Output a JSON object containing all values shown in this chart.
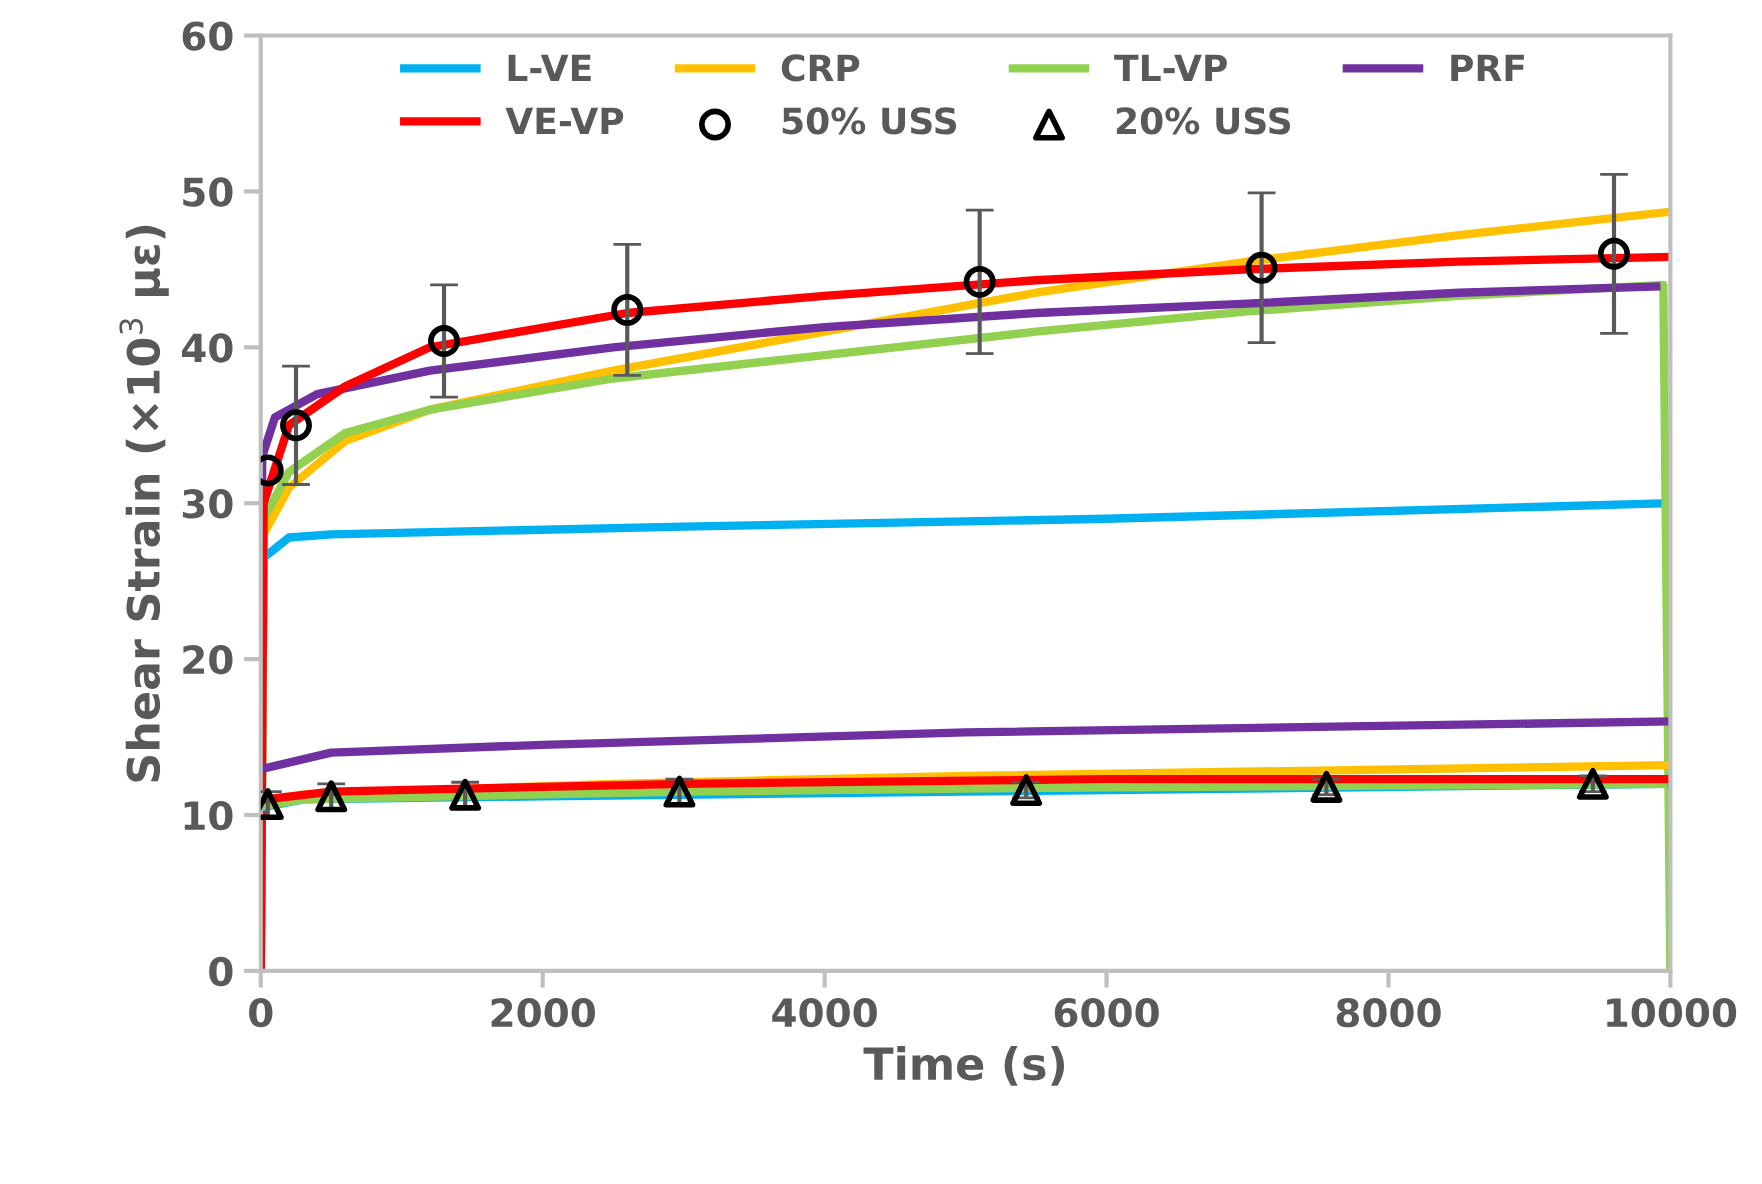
{
  "chart_data": {
    "type": "line",
    "xlabel": "Time (s)",
    "ylabel": "Shear Strain (×10$^{3}$ με)",
    "xlim": [
      0,
      10000
    ],
    "ylim": [
      0,
      60
    ],
    "xticks": [
      0,
      2000,
      4000,
      6000,
      8000,
      10000
    ],
    "yticks": [
      0,
      10,
      20,
      30,
      40,
      50,
      60
    ],
    "grid": false,
    "legend": "top",
    "marker": "none",
    "line_style": "solid",
    "series": [
      {
        "name": "L-VE",
        "color": "#00b0f0",
        "x": [
          0,
          20,
          200,
          500,
          3000,
          6000,
          10000
        ],
        "values": [
          0,
          26.5,
          27.8,
          28,
          28.5,
          29,
          30
        ]
      },
      {
        "name": "CRP",
        "color": "#ffc000",
        "x": [
          0,
          20,
          200,
          600,
          1200,
          2500,
          4000,
          5500,
          7000,
          8500,
          10000
        ],
        "values": [
          0,
          28,
          31,
          34,
          36,
          38.5,
          41,
          43.5,
          45.5,
          47.2,
          48.7
        ]
      },
      {
        "name": "TL-VP",
        "color": "#92d050",
        "x": [
          0,
          20,
          200,
          600,
          1200,
          2500,
          4000,
          5500,
          7000,
          8500,
          9950,
          10000
        ],
        "values": [
          0,
          29,
          32,
          34.5,
          36,
          38,
          39.5,
          41,
          42.3,
          43.3,
          44,
          0
        ]
      },
      {
        "name": "PRF",
        "color": "#7030a0",
        "x": [
          0,
          10,
          100,
          400,
          1200,
          2500,
          4000,
          5500,
          7000,
          8500,
          9900
        ],
        "values": [
          0,
          33,
          35.5,
          37,
          38.5,
          40,
          41.3,
          42.2,
          42.8,
          43.5,
          43.9
        ]
      },
      {
        "name": "VE-VP",
        "color": "#ff0000",
        "x": [
          0,
          20,
          200,
          600,
          1200,
          2600,
          4000,
          5500,
          7000,
          8500,
          10000
        ],
        "values": [
          0,
          30,
          35,
          37.5,
          40,
          42.2,
          43.3,
          44.3,
          45,
          45.5,
          45.8
        ]
      },
      {
        "color": "#00b0f0",
        "x": [
          20,
          300,
          2000,
          5000,
          10000
        ],
        "values": [
          10.5,
          11,
          11.2,
          11.5,
          12
        ]
      },
      {
        "color": "#ffc000",
        "x": [
          300,
          2500,
          5000,
          10000
        ],
        "values": [
          11.3,
          12,
          12.5,
          13.2
        ]
      },
      {
        "color": "#92d050",
        "x": [
          20,
          300,
          3000,
          5000,
          9950
        ],
        "values": [
          10.6,
          11,
          11.5,
          11.7,
          12
        ]
      },
      {
        "color": "#7030a0",
        "x": [
          30,
          500,
          2000,
          5000,
          10000
        ],
        "values": [
          13,
          14,
          14.5,
          15.3,
          16
        ]
      },
      {
        "color": "#ff0000",
        "x": [
          30,
          500,
          3000,
          6000,
          10000
        ],
        "values": [
          11,
          11.5,
          12,
          12.3,
          12.3
        ]
      },
      {
        "name": "50% USS",
        "type": "scatter",
        "marker": "circle",
        "color": "#000000",
        "x": [
          50,
          250,
          1300,
          2600,
          5100,
          7100,
          9600
        ],
        "values": [
          32.1,
          35,
          40.4,
          42.4,
          44.2,
          45.1,
          46
        ],
        "errors": [
          null,
          3.8,
          3.6,
          4.2,
          4.6,
          4.8,
          5.1
        ]
      },
      {
        "name": "20% USS",
        "type": "scatter",
        "marker": "triangle",
        "color": "#000000",
        "x": [
          50,
          500,
          1450,
          2970,
          5430,
          7560,
          9450
        ],
        "values": [
          10.7,
          11.2,
          11.3,
          11.5,
          11.6,
          11.8,
          12
        ],
        "errors": [
          0.8,
          0.8,
          0.8,
          0.8,
          0.5,
          0.5,
          0.5
        ]
      }
    ]
  }
}
